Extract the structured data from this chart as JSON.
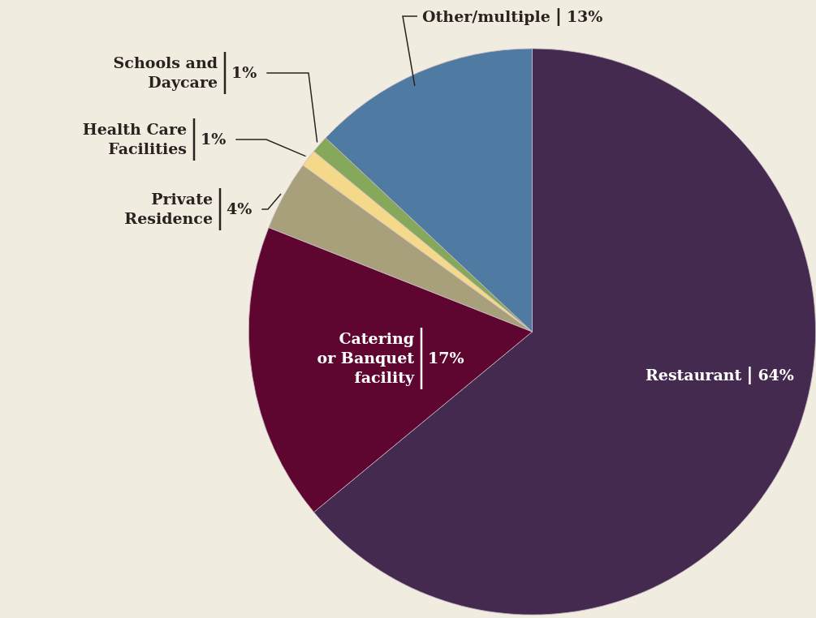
{
  "chart_data": {
    "type": "pie",
    "categories": [
      "Restaurant",
      "Catering or Banquet facility",
      "Private Residence",
      "Health Care Facilities",
      "Schools and Daycare",
      "Other/multiple"
    ],
    "values": [
      64,
      17,
      4,
      1,
      1,
      13
    ],
    "value_labels": [
      "64%",
      "17%",
      "4%",
      "1%",
      "1%",
      "13%"
    ],
    "colors": [
      "#452a4f",
      "#5e0530",
      "#a7a07a",
      "#f5d98a",
      "#86a85a",
      "#4f7ba3"
    ]
  }
}
